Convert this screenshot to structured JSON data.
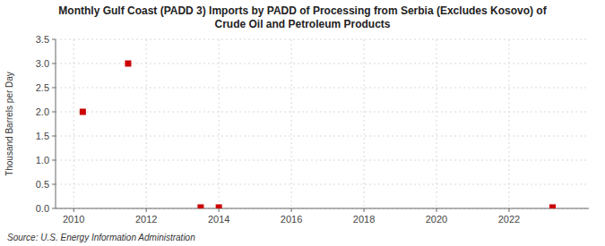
{
  "chart_data": {
    "type": "scatter",
    "title": "Monthly Gulf Coast (PADD 3) Imports by PADD of Processing from Serbia (Excludes Kosovo) of\nCrude Oil and Petroleum Products",
    "y_label": "Thousand Barrels per Day",
    "source": "Source: U.S. Energy Information Administration",
    "x": [
      2010.25,
      2011.5,
      2013.5,
      2014.0,
      2023.2
    ],
    "values": [
      2.0,
      3.0,
      0.02,
      0.02,
      0.02
    ],
    "color": "#cc0000",
    "marker": "square",
    "xlim": [
      2009.5,
      2024.2
    ],
    "xticks": [
      2010,
      2012,
      2014,
      2016,
      2018,
      2020,
      2022
    ],
    "ylim": [
      0.0,
      3.5
    ],
    "yticks": [
      {
        "value": 0,
        "label": "0.0"
      },
      0.5,
      {
        "value": 1,
        "label": "1.0"
      },
      1.5,
      {
        "value": 2,
        "label": "2.0"
      },
      2.5,
      {
        "value": 3,
        "label": "3.0"
      },
      3.5
    ],
    "grid": true
  }
}
